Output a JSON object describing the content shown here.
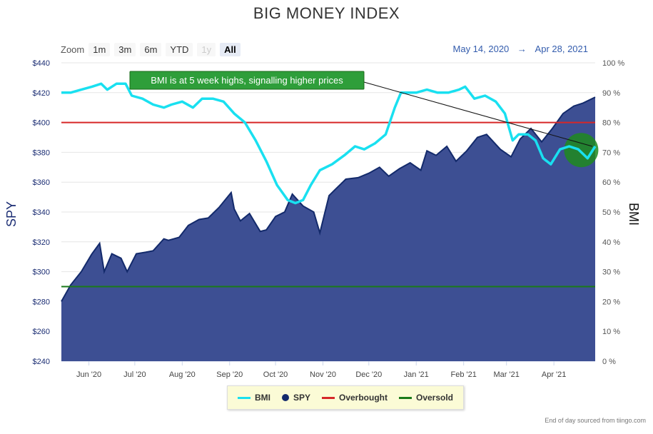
{
  "title": "BIG MONEY INDEX",
  "zoom": {
    "label": "Zoom",
    "buttons": [
      {
        "label": "1m",
        "state": "normal"
      },
      {
        "label": "3m",
        "state": "normal"
      },
      {
        "label": "6m",
        "state": "normal"
      },
      {
        "label": "YTD",
        "state": "normal"
      },
      {
        "label": "1y",
        "state": "disabled"
      },
      {
        "label": "All",
        "state": "active"
      }
    ]
  },
  "range": {
    "from": "May 14, 2020",
    "arrow": "→",
    "to": "Apr 28, 2021"
  },
  "annotation": "BMI is at 5 week highs, signalling higher prices",
  "credit": "End of day sourced from tiingo.com",
  "legend": [
    {
      "name": "BMI",
      "kind": "line",
      "color": "#19e0f0"
    },
    {
      "name": "SPY",
      "kind": "dot",
      "color": "#132a6b"
    },
    {
      "name": "Overbought",
      "kind": "line",
      "color": "#d62728"
    },
    {
      "name": "Oversold",
      "kind": "line",
      "color": "#1a7a1a"
    }
  ],
  "chart_data": {
    "type": "line",
    "title": "BIG MONEY INDEX",
    "y_left": {
      "label": "SPY",
      "min": 240,
      "max": 440,
      "ticks": [
        "$240",
        "$260",
        "$280",
        "$300",
        "$320",
        "$340",
        "$360",
        "$380",
        "$400",
        "$420",
        "$440"
      ]
    },
    "y_right": {
      "label": "BMI",
      "min": 0,
      "max": 100,
      "ticks": [
        "0 %",
        "10 %",
        "20 %",
        "30 %",
        "40 %",
        "50 %",
        "60 %",
        "70 %",
        "80 %",
        "90 %",
        "100 %"
      ]
    },
    "x_ticks": [
      "Jun '20",
      "Jul '20",
      "Aug '20",
      "Sep '20",
      "Oct '20",
      "Nov '20",
      "Dec '20",
      "Jan '21",
      "Feb '21",
      "Mar '21",
      "Apr '21"
    ],
    "x_range": [
      "2020-05-14",
      "2021-04-28"
    ],
    "tick_dates": [
      "2020-06-01",
      "2020-07-01",
      "2020-08-01",
      "2020-09-01",
      "2020-10-01",
      "2020-11-01",
      "2020-12-01",
      "2021-01-01",
      "2021-02-01",
      "2021-03-01",
      "2021-04-01"
    ],
    "series": [
      {
        "name": "SPY",
        "type": "area",
        "color": "#132a6b",
        "fill": "#3d4f93",
        "points": [
          [
            "2020-05-14",
            280
          ],
          [
            "2020-05-20",
            291
          ],
          [
            "2020-05-27",
            300
          ],
          [
            "2020-06-03",
            312
          ],
          [
            "2020-06-08",
            319
          ],
          [
            "2020-06-11",
            300
          ],
          [
            "2020-06-16",
            312
          ],
          [
            "2020-06-22",
            309
          ],
          [
            "2020-06-26",
            300
          ],
          [
            "2020-07-02",
            312
          ],
          [
            "2020-07-08",
            313
          ],
          [
            "2020-07-13",
            314
          ],
          [
            "2020-07-20",
            322
          ],
          [
            "2020-07-23",
            321
          ],
          [
            "2020-07-30",
            323
          ],
          [
            "2020-08-05",
            331
          ],
          [
            "2020-08-12",
            335
          ],
          [
            "2020-08-18",
            336
          ],
          [
            "2020-08-25",
            343
          ],
          [
            "2020-09-02",
            353
          ],
          [
            "2020-09-04",
            342
          ],
          [
            "2020-09-08",
            334
          ],
          [
            "2020-09-14",
            339
          ],
          [
            "2020-09-21",
            327
          ],
          [
            "2020-09-25",
            328
          ],
          [
            "2020-10-01",
            337
          ],
          [
            "2020-10-07",
            340
          ],
          [
            "2020-10-12",
            352
          ],
          [
            "2020-10-19",
            344
          ],
          [
            "2020-10-26",
            340
          ],
          [
            "2020-10-30",
            326
          ],
          [
            "2020-11-05",
            351
          ],
          [
            "2020-11-09",
            355
          ],
          [
            "2020-11-16",
            362
          ],
          [
            "2020-11-24",
            363
          ],
          [
            "2020-12-01",
            366
          ],
          [
            "2020-12-08",
            370
          ],
          [
            "2020-12-14",
            364
          ],
          [
            "2020-12-21",
            369
          ],
          [
            "2020-12-28",
            373
          ],
          [
            "2021-01-04",
            368
          ],
          [
            "2021-01-08",
            381
          ],
          [
            "2021-01-14",
            378
          ],
          [
            "2021-01-21",
            384
          ],
          [
            "2021-01-27",
            374
          ],
          [
            "2021-02-03",
            381
          ],
          [
            "2021-02-10",
            390
          ],
          [
            "2021-02-16",
            392
          ],
          [
            "2021-02-25",
            382
          ],
          [
            "2021-03-04",
            377
          ],
          [
            "2021-03-10",
            389
          ],
          [
            "2021-03-17",
            396
          ],
          [
            "2021-03-24",
            387
          ],
          [
            "2021-03-31",
            396
          ],
          [
            "2021-04-07",
            406
          ],
          [
            "2021-04-14",
            411
          ],
          [
            "2021-04-20",
            413
          ],
          [
            "2021-04-28",
            417
          ]
        ]
      },
      {
        "name": "BMI",
        "type": "line",
        "color": "#19e0f0",
        "points": [
          [
            "2020-05-14",
            90
          ],
          [
            "2020-05-20",
            90
          ],
          [
            "2020-05-27",
            91
          ],
          [
            "2020-06-03",
            92
          ],
          [
            "2020-06-09",
            93
          ],
          [
            "2020-06-13",
            91
          ],
          [
            "2020-06-19",
            93
          ],
          [
            "2020-06-25",
            93
          ],
          [
            "2020-06-29",
            89
          ],
          [
            "2020-07-06",
            88
          ],
          [
            "2020-07-13",
            86
          ],
          [
            "2020-07-20",
            85
          ],
          [
            "2020-07-25",
            86
          ],
          [
            "2020-08-01",
            87
          ],
          [
            "2020-08-08",
            85
          ],
          [
            "2020-08-14",
            88
          ],
          [
            "2020-08-21",
            88
          ],
          [
            "2020-08-28",
            87
          ],
          [
            "2020-09-04",
            83
          ],
          [
            "2020-09-11",
            80
          ],
          [
            "2020-09-18",
            74
          ],
          [
            "2020-09-25",
            67
          ],
          [
            "2020-10-02",
            59
          ],
          [
            "2020-10-09",
            54
          ],
          [
            "2020-10-14",
            53
          ],
          [
            "2020-10-19",
            54
          ],
          [
            "2020-10-24",
            59
          ],
          [
            "2020-10-30",
            64
          ],
          [
            "2020-11-07",
            66
          ],
          [
            "2020-11-15",
            69
          ],
          [
            "2020-11-22",
            72
          ],
          [
            "2020-11-28",
            71
          ],
          [
            "2020-12-05",
            73
          ],
          [
            "2020-12-12",
            76
          ],
          [
            "2020-12-18",
            85
          ],
          [
            "2020-12-22",
            90
          ],
          [
            "2021-01-01",
            90
          ],
          [
            "2021-01-08",
            91
          ],
          [
            "2021-01-15",
            90
          ],
          [
            "2021-01-22",
            90
          ],
          [
            "2021-01-29",
            91
          ],
          [
            "2021-02-02",
            92
          ],
          [
            "2021-02-08",
            88
          ],
          [
            "2021-02-15",
            89
          ],
          [
            "2021-02-22",
            87
          ],
          [
            "2021-02-28",
            83
          ],
          [
            "2021-03-05",
            74
          ],
          [
            "2021-03-09",
            76
          ],
          [
            "2021-03-15",
            76
          ],
          [
            "2021-03-20",
            74
          ],
          [
            "2021-03-25",
            68
          ],
          [
            "2021-03-30",
            66
          ],
          [
            "2021-04-05",
            71
          ],
          [
            "2021-04-11",
            72
          ],
          [
            "2021-04-17",
            71
          ],
          [
            "2021-04-23",
            68
          ],
          [
            "2021-04-28",
            72
          ]
        ]
      },
      {
        "name": "Overbought",
        "type": "hline",
        "color": "#d62728",
        "y": 80
      },
      {
        "name": "Oversold",
        "type": "hline",
        "color": "#1a7a1a",
        "y": 25
      }
    ]
  }
}
